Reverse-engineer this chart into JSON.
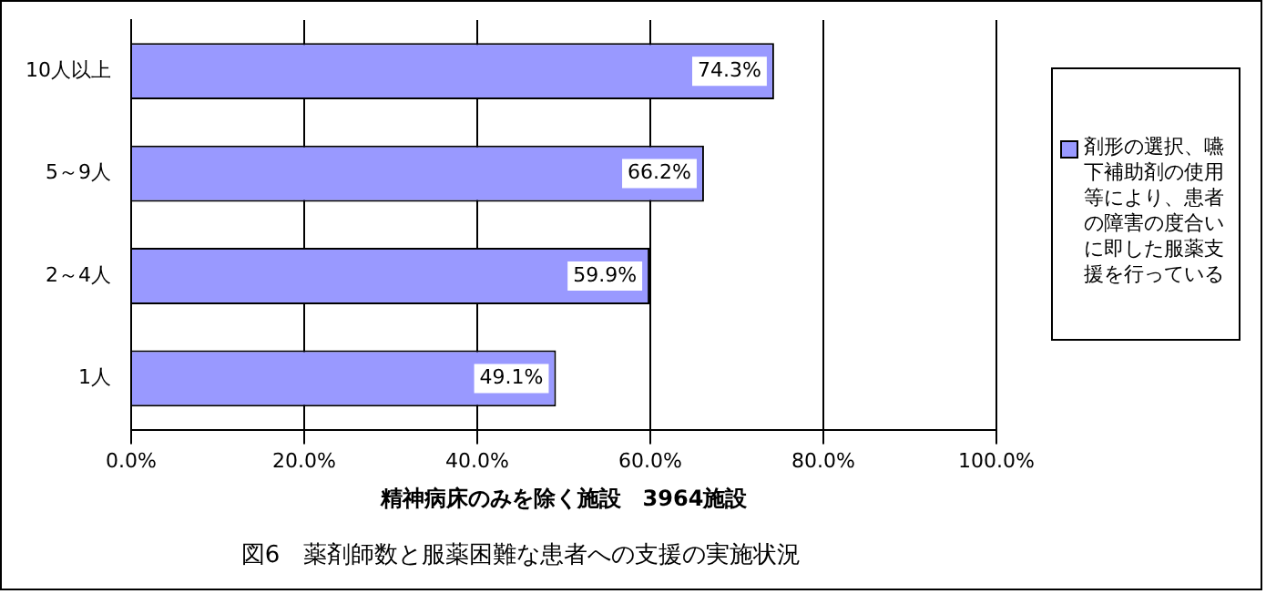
{
  "chart_data": {
    "type": "bar",
    "orientation": "horizontal",
    "title": "図6　薬剤師数と服薬困難な患者への支援の実施状況",
    "xlabel": "精神病床のみを除く施設　3964施設",
    "categories": [
      "10人以上",
      "5～9人",
      "2～4人",
      "1人"
    ],
    "series": [
      {
        "name": "剤形の選択、嚥下補助剤の使用等により、患者の障害の度合いに即した服薬支援を行っている",
        "color": "#9999ff",
        "values": [
          74.3,
          66.2,
          59.9,
          49.1
        ],
        "value_labels": [
          "74.3%",
          "66.2%",
          "59.9%",
          "49.1%"
        ]
      }
    ],
    "xlim": [
      0,
      100
    ],
    "xticks": [
      {
        "value": 0,
        "label": "0.0%"
      },
      {
        "value": 20,
        "label": "20.0%"
      },
      {
        "value": 40,
        "label": "40.0%"
      },
      {
        "value": 60,
        "label": "60.0%"
      },
      {
        "value": 80,
        "label": "80.0%"
      },
      {
        "value": 100,
        "label": "100.0%"
      }
    ],
    "grid": "x",
    "legend": "right"
  }
}
